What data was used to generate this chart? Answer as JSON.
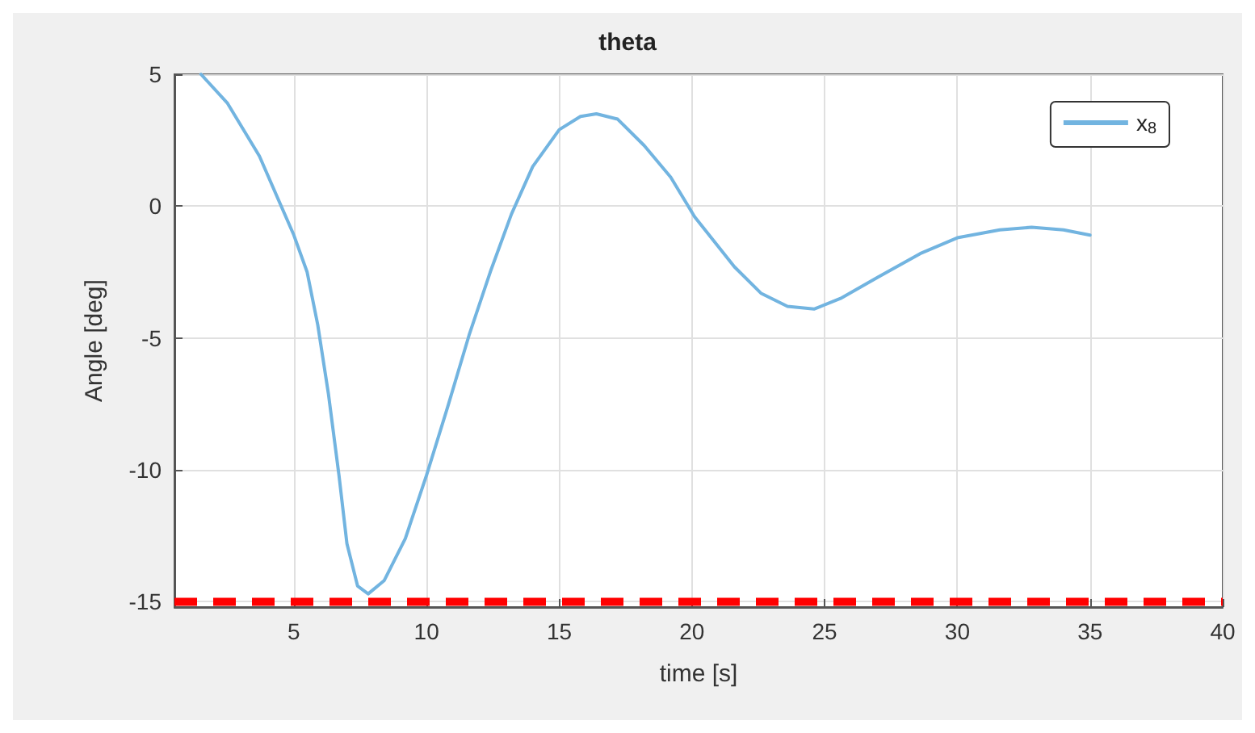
{
  "chart_data": {
    "type": "line",
    "title": "theta",
    "xlabel": "time [s]",
    "ylabel": "Angle [deg]",
    "xlim": [
      0.5,
      40
    ],
    "xticks": [
      5,
      10,
      15,
      20,
      25,
      30,
      35,
      40
    ],
    "ylim": [
      -15.2,
      5
    ],
    "yticks": [
      -15,
      -10,
      -5,
      0,
      5
    ],
    "grid": true,
    "legend": "top right",
    "line_style": "solid",
    "marker": "none",
    "series": [
      {
        "name": "x$_{8}$",
        "color": "#72b4e0",
        "x": [
          1.5,
          2.5,
          3.7,
          5.0,
          5.5,
          5.9,
          6.3,
          6.7,
          7.0,
          7.4,
          7.8,
          8.4,
          9.2,
          10.0,
          10.8,
          11.6,
          12.4,
          13.2,
          14.0,
          15.0,
          15.8,
          16.4,
          17.2,
          18.2,
          19.2,
          20.1,
          21.6,
          22.6,
          23.6,
          24.6,
          25.6,
          27.0,
          28.6,
          30.0,
          31.6,
          32.8,
          34.0,
          35.0
        ],
        "values": [
          5,
          3.9,
          1.9,
          -1.1,
          -2.5,
          -4.5,
          -7.1,
          -10.2,
          -12.8,
          -14.4,
          -14.7,
          -14.2,
          -12.6,
          -10.2,
          -7.6,
          -4.9,
          -2.5,
          -0.3,
          1.5,
          2.9,
          3.4,
          3.5,
          3.3,
          2.3,
          1.1,
          -0.4,
          -2.3,
          -3.3,
          -3.8,
          -3.9,
          -3.5,
          -2.7,
          -1.8,
          -1.2,
          -0.9,
          -0.8,
          -0.9,
          -1.1
        ]
      }
    ],
    "ref_lines": [
      {
        "axis": "y",
        "value": -15,
        "color": "#ff0000",
        "line_style": "dashed"
      }
    ]
  }
}
